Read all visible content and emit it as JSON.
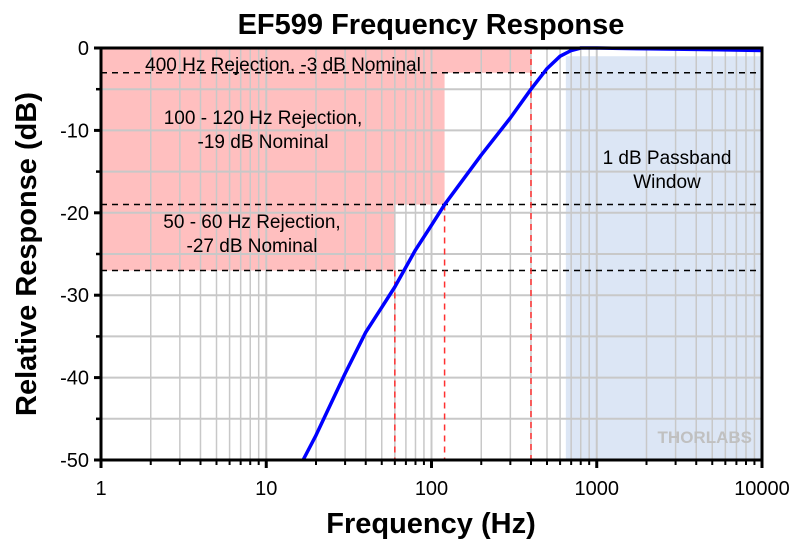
{
  "chart_data": {
    "type": "line",
    "title": "EF599 Frequency Response",
    "xlabel": "Frequency (Hz)",
    "ylabel": "Relative Response (dB)",
    "xscale": "log",
    "xlim": [
      1,
      10000
    ],
    "ylim": [
      -50,
      0
    ],
    "xticks": [
      1,
      10,
      100,
      1000,
      10000
    ],
    "xtick_labels": [
      "1",
      "10",
      "100",
      "1000",
      "10000"
    ],
    "yticks": [
      0,
      -10,
      -20,
      -30,
      -40,
      -50
    ],
    "ytick_labels": [
      "0",
      "-10",
      "-20",
      "-30",
      "-40",
      "-50"
    ],
    "grid": true,
    "series": [
      {
        "name": "EF599",
        "color": "#0000ff",
        "x": [
          16.7,
          20,
          30,
          40,
          60,
          80,
          100,
          120,
          200,
          300,
          400,
          500,
          600,
          700,
          800,
          1000,
          2000,
          5000,
          10000
        ],
        "y": [
          -50,
          -47,
          -39.5,
          -34.5,
          -29,
          -24.5,
          -21.5,
          -19,
          -13,
          -8.5,
          -5,
          -2.5,
          -1,
          -0.3,
          0,
          0,
          -0.1,
          -0.2,
          -0.3
        ]
      }
    ],
    "regions": [
      {
        "label": "400 Hz Rejection, -3 dB Nominal",
        "x_max": 400,
        "y_min": -3,
        "color": "#ffbfbf"
      },
      {
        "label": "100 - 120 Hz Rejection,\n-19 dB Nominal",
        "x_max": 120,
        "y_min": -19,
        "color": "#ffbfbf"
      },
      {
        "label": "50 - 60 Hz Rejection,\n-27 dB Nominal",
        "x_max": 60,
        "y_min": -27,
        "color": "#ffbfbf"
      },
      {
        "label": "1 dB Passband\nWindow",
        "x_min": 650,
        "y_max": -1,
        "color": "#dce6f5"
      }
    ],
    "reference_lines": {
      "h_db": [
        -3,
        -19,
        -27
      ],
      "v_hz": [
        60,
        120,
        400
      ]
    },
    "watermark": "THORLABS"
  }
}
